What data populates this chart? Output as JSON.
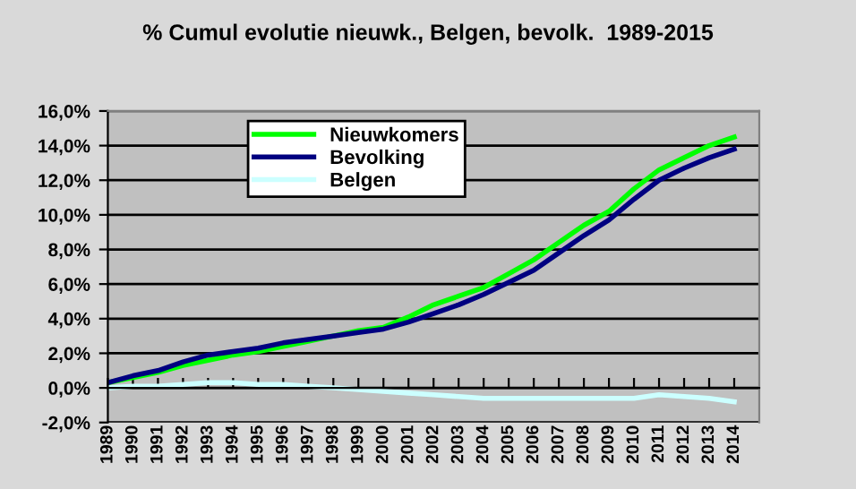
{
  "chart_data": {
    "type": "line",
    "title": "% Cumul evolutie nieuwk., Belgen, bevolk.  1989-2015",
    "categories": [
      "1989",
      "1990",
      "1991",
      "1992",
      "1993",
      "1994",
      "1995",
      "1996",
      "1997",
      "1998",
      "1999",
      "2000",
      "2001",
      "2002",
      "2003",
      "2004",
      "2005",
      "2006",
      "2007",
      "2008",
      "2009",
      "2010",
      "2011",
      "2012",
      "2013",
      "2014"
    ],
    "series": [
      {
        "name": "Nieuwkomers",
        "color": "#00ff00",
        "values": [
          0.3,
          0.6,
          0.9,
          1.3,
          1.6,
          1.9,
          2.1,
          2.4,
          2.7,
          3.0,
          3.3,
          3.5,
          4.1,
          4.8,
          5.3,
          5.8,
          6.6,
          7.4,
          8.4,
          9.4,
          10.2,
          11.5,
          12.6,
          13.3,
          14.0,
          14.5
        ]
      },
      {
        "name": "Bevolking",
        "color": "#000080",
        "values": [
          0.3,
          0.7,
          1.0,
          1.5,
          1.9,
          2.1,
          2.3,
          2.6,
          2.8,
          3.0,
          3.2,
          3.4,
          3.8,
          4.3,
          4.8,
          5.4,
          6.1,
          6.8,
          7.8,
          8.8,
          9.7,
          10.9,
          12.0,
          12.7,
          13.3,
          13.8
        ]
      },
      {
        "name": "Belgen",
        "color": "#ccffff",
        "values": [
          0.0,
          0.1,
          0.1,
          0.2,
          0.3,
          0.3,
          0.2,
          0.2,
          0.1,
          0.0,
          -0.1,
          -0.2,
          -0.3,
          -0.4,
          -0.5,
          -0.6,
          -0.6,
          -0.6,
          -0.6,
          -0.6,
          -0.6,
          -0.6,
          -0.4,
          -0.5,
          -0.6,
          -0.8
        ]
      }
    ],
    "ylim": [
      -2,
      16
    ],
    "yticks": [
      {
        "value": -2,
        "label": "-2,0%"
      },
      {
        "value": 0,
        "label": "0,0%"
      },
      {
        "value": 2,
        "label": "2,0%"
      },
      {
        "value": 4,
        "label": "4,0%"
      },
      {
        "value": 6,
        "label": "6,0%"
      },
      {
        "value": 8,
        "label": "8,0%"
      },
      {
        "value": 10,
        "label": "10,0%"
      },
      {
        "value": 12,
        "label": "12,0%"
      },
      {
        "value": 14,
        "label": "14,0%"
      },
      {
        "value": 16,
        "label": "16,0%"
      }
    ],
    "grid": "y",
    "legend": "top left",
    "marker": "none",
    "line_style": "solid"
  }
}
